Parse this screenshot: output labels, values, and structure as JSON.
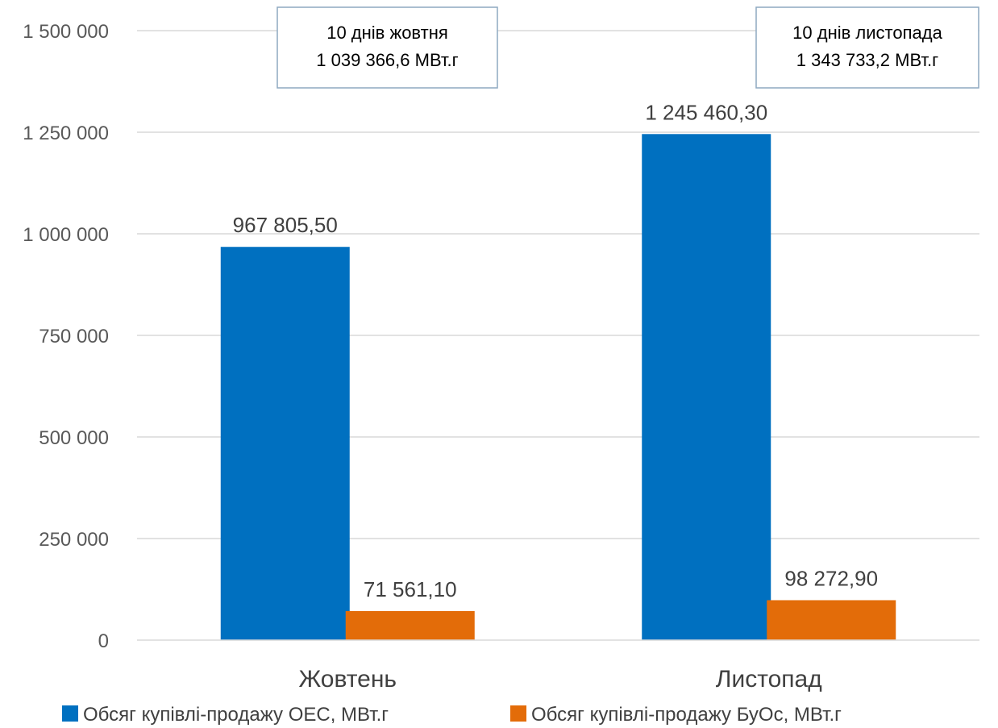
{
  "chart_data": {
    "type": "bar",
    "categories": [
      "Жовтень",
      "Листопад"
    ],
    "series": [
      {
        "name": "Обсяг купівлі-продажу ОЕС, МВт.г",
        "values": [
          967805.5,
          1245460.3
        ],
        "labels": [
          "967 805,50",
          "1 245 460,30"
        ],
        "color": "#0070C0"
      },
      {
        "name": "Обсяг купівлі-продажу БуОс, МВт.г",
        "values": [
          71561.1,
          98272.9
        ],
        "labels": [
          "71 561,10",
          "98 272,90"
        ],
        "color": "#E36C09"
      }
    ],
    "ylim": [
      0,
      1500000
    ],
    "yticks": [
      0,
      250000,
      500000,
      750000,
      1000000,
      1250000,
      1500000
    ],
    "ytick_labels": [
      "0",
      "250 000",
      "500 000",
      "750 000",
      "1 000 000",
      "1 250 000",
      "1 500 000"
    ],
    "grid": true,
    "legend": "bottom",
    "annotations": [
      {
        "line1": "10 днів жовтня",
        "line2": "1 039 366,6 МВт.г",
        "category": "Жовтень"
      },
      {
        "line1": "10 днів листопада",
        "line2": "1 343 733,2 МВт.г",
        "category": "Листопад"
      }
    ],
    "title": "",
    "xlabel": "",
    "ylabel": ""
  }
}
